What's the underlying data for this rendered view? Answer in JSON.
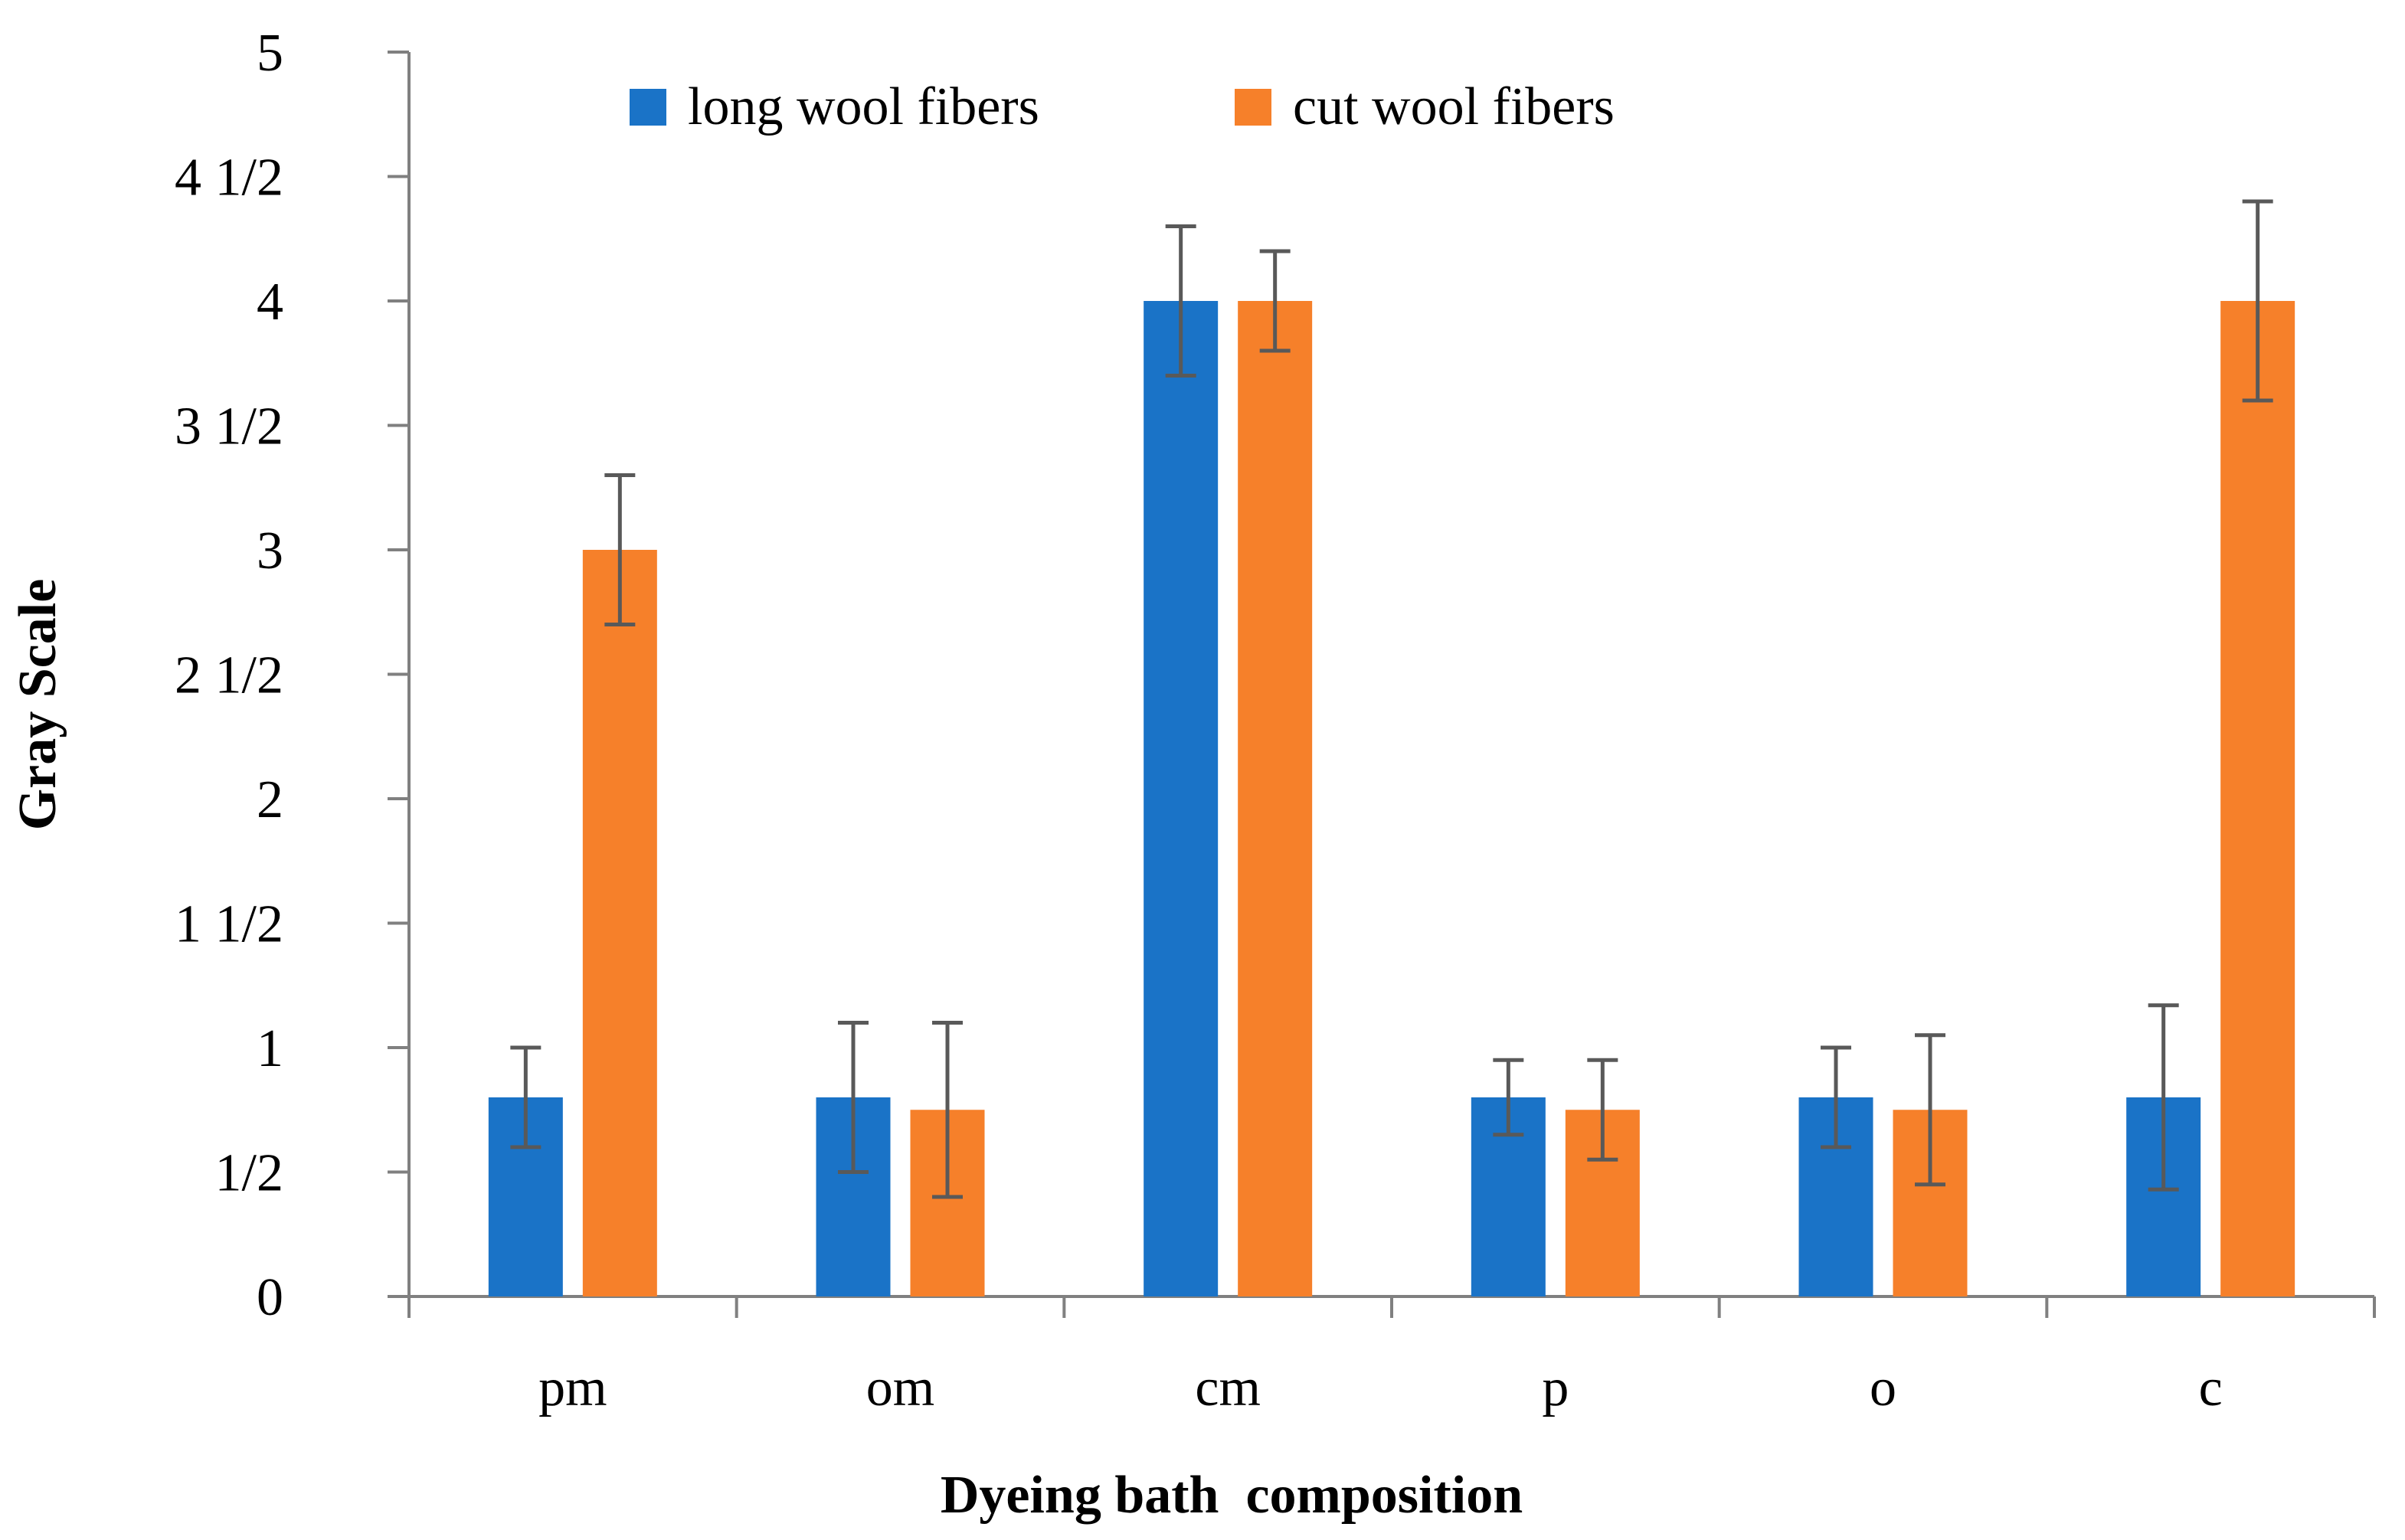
{
  "chart_data": {
    "type": "bar",
    "title": "",
    "xlabel": "Dyeing bath  composition",
    "ylabel": "Gray Scale",
    "ylim": [
      0,
      5
    ],
    "yticks": [
      {
        "value": 0,
        "label": "0"
      },
      {
        "value": 0.5,
        "label": "1/2"
      },
      {
        "value": 1,
        "label": "1"
      },
      {
        "value": 1.5,
        "label": "1 1/2"
      },
      {
        "value": 2,
        "label": "2"
      },
      {
        "value": 2.5,
        "label": "2 1/2"
      },
      {
        "value": 3,
        "label": "3"
      },
      {
        "value": 3.5,
        "label": "3 1/2"
      },
      {
        "value": 4,
        "label": "4"
      },
      {
        "value": 4.5,
        "label": "4 1/2"
      },
      {
        "value": 5,
        "label": "5"
      }
    ],
    "categories": [
      "pm",
      "om",
      "cm",
      "p",
      "o",
      "c"
    ],
    "series": [
      {
        "name": "long wool fibers",
        "color": "#1a73c7",
        "values": [
          0.8,
          0.8,
          4.0,
          0.8,
          0.8,
          0.8
        ],
        "errors": [
          0.2,
          0.3,
          0.3,
          0.15,
          0.2,
          0.37
        ]
      },
      {
        "name": "cut wool fibers",
        "color": "#f6802a",
        "values": [
          3.0,
          0.75,
          4.0,
          0.75,
          0.75,
          4.0
        ],
        "errors": [
          0.3,
          0.35,
          0.2,
          0.2,
          0.3,
          0.4
        ]
      }
    ],
    "legend_position": "top-center",
    "grid": false
  }
}
